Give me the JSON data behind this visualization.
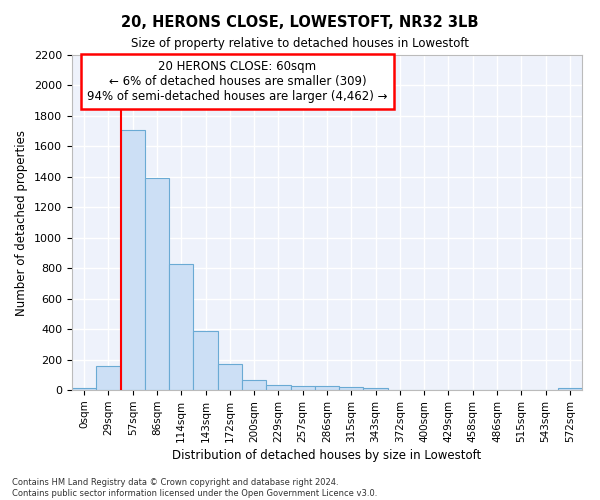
{
  "title": "20, HERONS CLOSE, LOWESTOFT, NR32 3LB",
  "subtitle": "Size of property relative to detached houses in Lowestoft",
  "xlabel": "Distribution of detached houses by size in Lowestoft",
  "ylabel": "Number of detached properties",
  "bar_color": "#ccdff5",
  "bar_edge_color": "#6aaad4",
  "background_color": "#eef2fb",
  "grid_color": "#ffffff",
  "categories": [
    "0sqm",
    "29sqm",
    "57sqm",
    "86sqm",
    "114sqm",
    "143sqm",
    "172sqm",
    "200sqm",
    "229sqm",
    "257sqm",
    "286sqm",
    "315sqm",
    "343sqm",
    "372sqm",
    "400sqm",
    "429sqm",
    "458sqm",
    "486sqm",
    "515sqm",
    "543sqm",
    "572sqm"
  ],
  "values": [
    15,
    155,
    1710,
    1390,
    830,
    385,
    170,
    65,
    30,
    28,
    25,
    18,
    15,
    0,
    0,
    0,
    0,
    0,
    0,
    0,
    15
  ],
  "ylim": [
    0,
    2200
  ],
  "yticks": [
    0,
    200,
    400,
    600,
    800,
    1000,
    1200,
    1400,
    1600,
    1800,
    2000,
    2200
  ],
  "property_label": "20 HERONS CLOSE: 60sqm",
  "annotation_line1": "← 6% of detached houses are smaller (309)",
  "annotation_line2": "94% of semi-detached houses are larger (4,462) →",
  "vline_x_index": 2,
  "footer1": "Contains HM Land Registry data © Crown copyright and database right 2024.",
  "footer2": "Contains public sector information licensed under the Open Government Licence v3.0."
}
